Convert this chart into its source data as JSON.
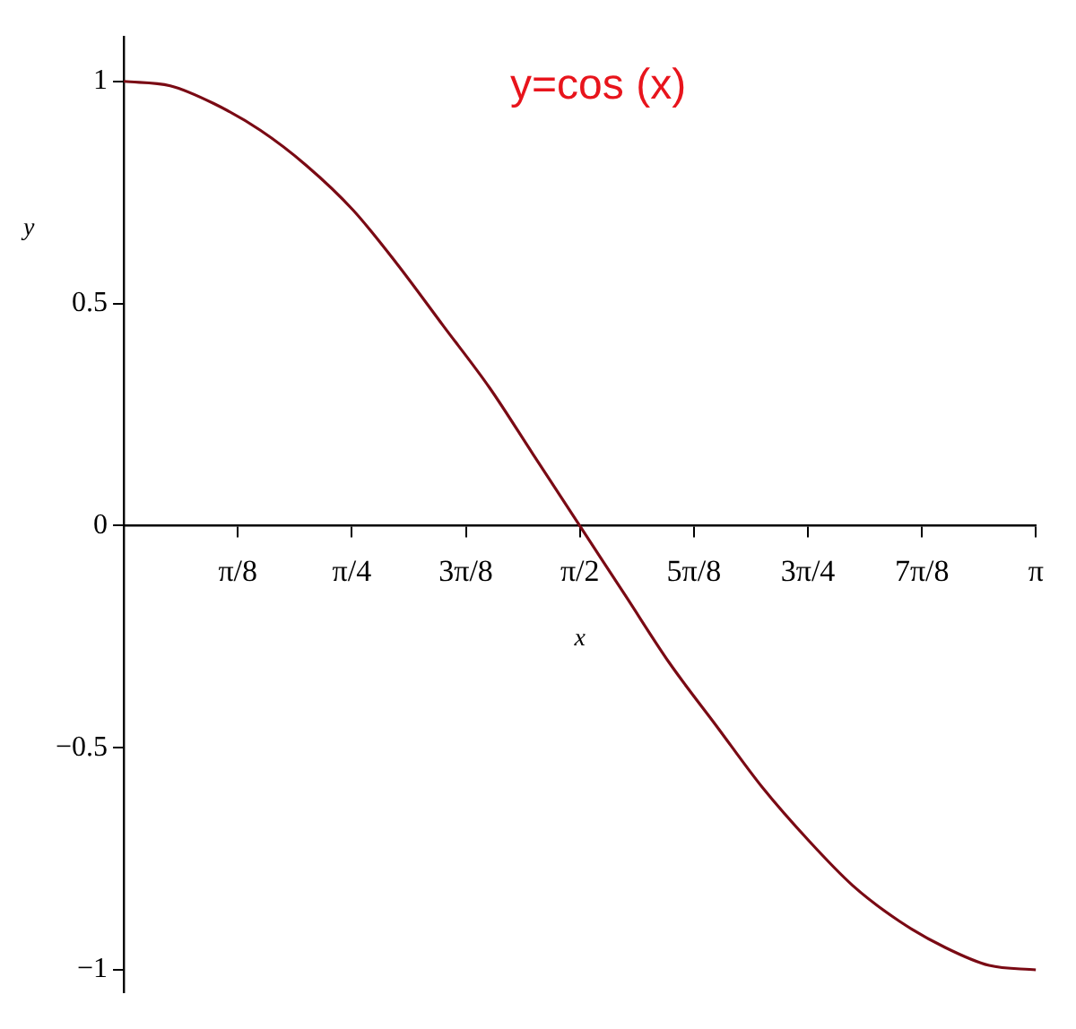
{
  "chart_data": {
    "type": "line",
    "xlabel": "x",
    "ylabel": "y",
    "annotations": [
      "y=cos (x)"
    ],
    "x": [
      0,
      0.16,
      0.31,
      0.47,
      0.63,
      0.79,
      0.94,
      1.1,
      1.26,
      1.41,
      1.57,
      1.73,
      1.88,
      2.04,
      2.2,
      2.36,
      2.51,
      2.67,
      2.83,
      2.98,
      3.1416
    ],
    "series": [
      {
        "color": "#7a0a14",
        "values": [
          1,
          0.99,
          0.95,
          0.89,
          0.81,
          0.71,
          0.59,
          0.45,
          0.31,
          0.16,
          0,
          -0.16,
          -0.31,
          -0.45,
          -0.59,
          -0.71,
          -0.81,
          -0.89,
          -0.95,
          -0.99,
          -1
        ]
      }
    ],
    "xlim": [
      0,
      3.1416
    ],
    "xticks": [
      {
        "value": 0.3927,
        "label": "π/8"
      },
      {
        "value": 0.7854,
        "label": "π/4"
      },
      {
        "value": 1.1781,
        "label": "3π/8"
      },
      {
        "value": 1.5708,
        "label": "π/2"
      },
      {
        "value": 1.9635,
        "label": "5π/8"
      },
      {
        "value": 2.3562,
        "label": "3π/4"
      },
      {
        "value": 2.7489,
        "label": "7π/8"
      },
      {
        "value": 3.1416,
        "label": "π"
      }
    ],
    "ylim": [
      -1.05,
      1.1
    ],
    "yticks": [
      {
        "value": -1,
        "label": "−1"
      },
      {
        "value": -0.5,
        "label": "−0.5"
      },
      0,
      0.5,
      1
    ],
    "grid": false,
    "legend": false,
    "line_style": "solid",
    "marker": "none"
  }
}
